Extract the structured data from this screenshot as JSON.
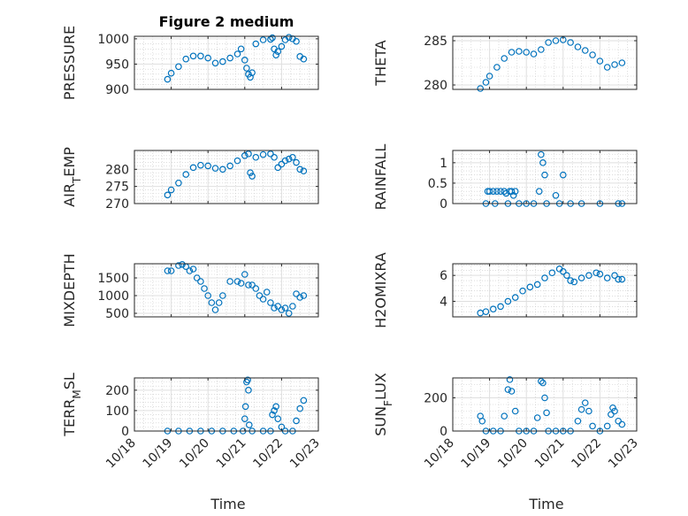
{
  "chart_data": [
    {
      "type": "scatter",
      "title": "Figure 2 medium",
      "ylabel": "PRESSURE",
      "xlabel": "",
      "grid": true,
      "ylim": [
        900,
        1005
      ],
      "yticks": [
        900,
        950,
        1000
      ],
      "ytick_labels": [
        "900",
        "950",
        "1000"
      ],
      "series": [
        {
          "values": [
            [
              18.9,
              920
            ],
            [
              19.0,
              932
            ],
            [
              19.2,
              945
            ],
            [
              19.4,
              960
            ],
            [
              19.6,
              966
            ],
            [
              19.8,
              966
            ],
            [
              20.0,
              962
            ],
            [
              20.2,
              952
            ],
            [
              20.4,
              955
            ],
            [
              20.6,
              962
            ],
            [
              20.8,
              970
            ],
            [
              20.9,
              980
            ],
            [
              21.0,
              958
            ],
            [
              21.05,
              942
            ],
            [
              21.1,
              930
            ],
            [
              21.15,
              924
            ],
            [
              21.2,
              933
            ],
            [
              21.3,
              990
            ],
            [
              21.5,
              998
            ],
            [
              21.7,
              999
            ],
            [
              21.75,
              1002
            ],
            [
              21.8,
              980
            ],
            [
              21.85,
              968
            ],
            [
              21.9,
              975
            ],
            [
              22.0,
              985
            ],
            [
              22.1,
              998
            ],
            [
              22.2,
              1003
            ],
            [
              22.3,
              1000
            ],
            [
              22.4,
              995
            ],
            [
              22.5,
              965
            ],
            [
              22.6,
              960
            ]
          ]
        }
      ]
    },
    {
      "type": "scatter",
      "title": "",
      "ylabel": "THETA",
      "xlabel": "",
      "grid": true,
      "ylim": [
        279.5,
        285.5
      ],
      "yticks": [
        280,
        285
      ],
      "ytick_labels": [
        "280",
        "285"
      ],
      "series": [
        {
          "values": [
            [
              18.75,
              279.6
            ],
            [
              18.9,
              280.3
            ],
            [
              19.0,
              281.0
            ],
            [
              19.2,
              282.0
            ],
            [
              19.4,
              283.0
            ],
            [
              19.6,
              283.7
            ],
            [
              19.8,
              283.8
            ],
            [
              20.0,
              283.7
            ],
            [
              20.2,
              283.5
            ],
            [
              20.4,
              284.0
            ],
            [
              20.6,
              284.8
            ],
            [
              20.8,
              285.0
            ],
            [
              21.0,
              285.1
            ],
            [
              21.2,
              284.8
            ],
            [
              21.4,
              284.3
            ],
            [
              21.6,
              283.9
            ],
            [
              21.8,
              283.4
            ],
            [
              22.0,
              282.7
            ],
            [
              22.2,
              282.0
            ],
            [
              22.4,
              282.3
            ],
            [
              22.6,
              282.5
            ]
          ]
        }
      ]
    },
    {
      "type": "scatter",
      "title": "",
      "ylabel": "AIR_T_EMP",
      "xlabel": "",
      "grid": true,
      "ylim": [
        270,
        285.5
      ],
      "yticks": [
        270,
        275,
        280
      ],
      "ytick_labels": [
        "270",
        "275",
        "280"
      ],
      "series": [
        {
          "values": [
            [
              18.9,
              272.5
            ],
            [
              19.0,
              274.0
            ],
            [
              19.2,
              276.0
            ],
            [
              19.4,
              278.5
            ],
            [
              19.6,
              280.5
            ],
            [
              19.8,
              281.2
            ],
            [
              20.0,
              281.0
            ],
            [
              20.2,
              280.3
            ],
            [
              20.4,
              280.0
            ],
            [
              20.6,
              281.0
            ],
            [
              20.8,
              282.5
            ],
            [
              21.0,
              284.0
            ],
            [
              21.1,
              284.5
            ],
            [
              21.15,
              279.0
            ],
            [
              21.2,
              278.0
            ],
            [
              21.3,
              283.5
            ],
            [
              21.5,
              284.3
            ],
            [
              21.7,
              284.5
            ],
            [
              21.8,
              283.5
            ],
            [
              21.9,
              280.5
            ],
            [
              22.0,
              281.5
            ],
            [
              22.1,
              282.5
            ],
            [
              22.2,
              283.0
            ],
            [
              22.3,
              283.5
            ],
            [
              22.4,
              282.0
            ],
            [
              22.5,
              280.0
            ],
            [
              22.6,
              279.5
            ]
          ]
        }
      ]
    },
    {
      "type": "scatter",
      "title": "",
      "ylabel": "RAINFALL",
      "xlabel": "",
      "grid": true,
      "ylim": [
        0,
        1.3
      ],
      "yticks": [
        0,
        0.5,
        1
      ],
      "ytick_labels": [
        "0",
        "0.5",
        "1"
      ],
      "series": [
        {
          "values": [
            [
              18.9,
              0
            ],
            [
              18.95,
              0.3
            ],
            [
              19.0,
              0.3
            ],
            [
              19.1,
              0.3
            ],
            [
              19.15,
              0
            ],
            [
              19.2,
              0.3
            ],
            [
              19.3,
              0.3
            ],
            [
              19.4,
              0.3
            ],
            [
              19.45,
              0.25
            ],
            [
              19.5,
              0
            ],
            [
              19.55,
              0.3
            ],
            [
              19.6,
              0.3
            ],
            [
              19.65,
              0.2
            ],
            [
              19.7,
              0.3
            ],
            [
              19.8,
              0
            ],
            [
              20.0,
              0
            ],
            [
              20.2,
              0
            ],
            [
              20.35,
              0.3
            ],
            [
              20.4,
              1.2
            ],
            [
              20.45,
              1.0
            ],
            [
              20.5,
              0.7
            ],
            [
              20.55,
              0
            ],
            [
              20.8,
              0.2
            ],
            [
              20.9,
              0
            ],
            [
              21.0,
              0.7
            ],
            [
              21.2,
              0
            ],
            [
              21.5,
              0
            ],
            [
              22.0,
              0
            ],
            [
              22.5,
              0
            ],
            [
              22.6,
              0
            ]
          ]
        }
      ]
    },
    {
      "type": "scatter",
      "title": "",
      "ylabel": "MIXDEPTH",
      "xlabel": "",
      "grid": true,
      "ylim": [
        400,
        1900
      ],
      "yticks": [
        500,
        1000,
        1500
      ],
      "ytick_labels": [
        "500",
        "1000",
        "1500"
      ],
      "series": [
        {
          "values": [
            [
              18.9,
              1700
            ],
            [
              19.0,
              1700
            ],
            [
              19.2,
              1850
            ],
            [
              19.3,
              1880
            ],
            [
              19.4,
              1820
            ],
            [
              19.5,
              1700
            ],
            [
              19.6,
              1750
            ],
            [
              19.7,
              1500
            ],
            [
              19.8,
              1400
            ],
            [
              19.9,
              1200
            ],
            [
              20.0,
              1000
            ],
            [
              20.1,
              800
            ],
            [
              20.2,
              600
            ],
            [
              20.3,
              800
            ],
            [
              20.4,
              1000
            ],
            [
              20.6,
              1400
            ],
            [
              20.8,
              1400
            ],
            [
              20.9,
              1350
            ],
            [
              21.0,
              1600
            ],
            [
              21.1,
              1300
            ],
            [
              21.2,
              1300
            ],
            [
              21.3,
              1200
            ],
            [
              21.4,
              1000
            ],
            [
              21.5,
              900
            ],
            [
              21.6,
              1100
            ],
            [
              21.7,
              800
            ],
            [
              21.8,
              650
            ],
            [
              21.9,
              700
            ],
            [
              22.0,
              600
            ],
            [
              22.1,
              650
            ],
            [
              22.2,
              500
            ],
            [
              22.3,
              700
            ],
            [
              22.4,
              1050
            ],
            [
              22.5,
              950
            ],
            [
              22.6,
              1000
            ]
          ]
        }
      ]
    },
    {
      "type": "scatter",
      "title": "",
      "ylabel": "H2OMIXRA",
      "xlabel": "",
      "grid": true,
      "ylim": [
        2.8,
        6.9
      ],
      "yticks": [
        4,
        6
      ],
      "ytick_labels": [
        "4",
        "6"
      ],
      "series": [
        {
          "values": [
            [
              18.75,
              3.1
            ],
            [
              18.9,
              3.2
            ],
            [
              19.1,
              3.4
            ],
            [
              19.3,
              3.6
            ],
            [
              19.5,
              4.0
            ],
            [
              19.7,
              4.3
            ],
            [
              19.9,
              4.8
            ],
            [
              20.1,
              5.1
            ],
            [
              20.3,
              5.3
            ],
            [
              20.5,
              5.8
            ],
            [
              20.7,
              6.2
            ],
            [
              20.9,
              6.5
            ],
            [
              21.0,
              6.3
            ],
            [
              21.1,
              6.0
            ],
            [
              21.2,
              5.6
            ],
            [
              21.3,
              5.5
            ],
            [
              21.5,
              5.8
            ],
            [
              21.7,
              6.0
            ],
            [
              21.9,
              6.2
            ],
            [
              22.0,
              6.1
            ],
            [
              22.2,
              5.8
            ],
            [
              22.4,
              6.0
            ],
            [
              22.5,
              5.7
            ],
            [
              22.6,
              5.7
            ]
          ]
        }
      ]
    },
    {
      "type": "scatter",
      "title": "",
      "ylabel": "TERR_M_SL",
      "xlabel": "Time",
      "grid": true,
      "ylim": [
        0,
        260
      ],
      "yticks": [
        0,
        100,
        200
      ],
      "ytick_labels": [
        "0",
        "100",
        "200"
      ],
      "series": [
        {
          "values": [
            [
              18.9,
              0
            ],
            [
              19.2,
              0
            ],
            [
              19.5,
              0
            ],
            [
              19.8,
              0
            ],
            [
              20.1,
              0
            ],
            [
              20.4,
              0
            ],
            [
              20.7,
              0
            ],
            [
              20.95,
              0
            ],
            [
              21.0,
              60
            ],
            [
              21.02,
              120
            ],
            [
              21.05,
              240
            ],
            [
              21.08,
              250
            ],
            [
              21.1,
              200
            ],
            [
              21.12,
              30
            ],
            [
              21.2,
              0
            ],
            [
              21.5,
              0
            ],
            [
              21.7,
              0
            ],
            [
              21.75,
              80
            ],
            [
              21.8,
              100
            ],
            [
              21.85,
              120
            ],
            [
              21.9,
              60
            ],
            [
              22.0,
              20
            ],
            [
              22.1,
              0
            ],
            [
              22.3,
              0
            ],
            [
              22.4,
              50
            ],
            [
              22.5,
              110
            ],
            [
              22.6,
              150
            ]
          ]
        }
      ]
    },
    {
      "type": "scatter",
      "title": "",
      "ylabel": "SUN_F_LUX",
      "xlabel": "Time",
      "grid": true,
      "ylim": [
        0,
        320
      ],
      "yticks": [
        0,
        200
      ],
      "ytick_labels": [
        "0",
        "200"
      ],
      "series": [
        {
          "values": [
            [
              18.75,
              90
            ],
            [
              18.8,
              60
            ],
            [
              18.9,
              0
            ],
            [
              19.1,
              0
            ],
            [
              19.3,
              0
            ],
            [
              19.4,
              90
            ],
            [
              19.5,
              250
            ],
            [
              19.55,
              310
            ],
            [
              19.6,
              240
            ],
            [
              19.7,
              120
            ],
            [
              19.8,
              0
            ],
            [
              20.0,
              0
            ],
            [
              20.2,
              0
            ],
            [
              20.3,
              80
            ],
            [
              20.4,
              300
            ],
            [
              20.45,
              290
            ],
            [
              20.5,
              200
            ],
            [
              20.55,
              110
            ],
            [
              20.6,
              0
            ],
            [
              20.8,
              0
            ],
            [
              21.0,
              0
            ],
            [
              21.2,
              0
            ],
            [
              21.4,
              60
            ],
            [
              21.5,
              130
            ],
            [
              21.6,
              170
            ],
            [
              21.7,
              120
            ],
            [
              21.8,
              30
            ],
            [
              22.0,
              0
            ],
            [
              22.2,
              30
            ],
            [
              22.3,
              100
            ],
            [
              22.35,
              140
            ],
            [
              22.4,
              120
            ],
            [
              22.5,
              60
            ],
            [
              22.6,
              40
            ]
          ]
        }
      ]
    }
  ],
  "x_axis": {
    "xlim": [
      18,
      23
    ],
    "xticks": [
      18,
      19,
      20,
      21,
      22,
      23
    ],
    "xtick_labels": [
      "10/18",
      "10/19",
      "10/20",
      "10/21",
      "10/22",
      "10/23"
    ]
  },
  "colors": {
    "marker": "#0072BD",
    "axes": "#262626",
    "grid": "#dfdfdf"
  }
}
